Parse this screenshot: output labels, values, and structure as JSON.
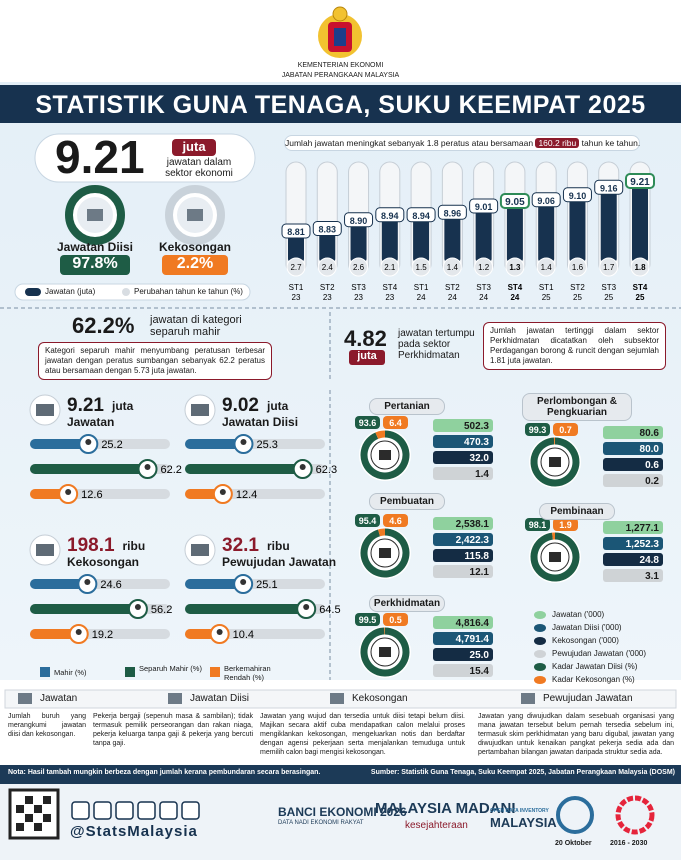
{
  "header": {
    "ministry": "KEMENTERIAN EKONOMI",
    "department": "JABATAN PERANGKAAN MALAYSIA",
    "title": "STATISTIK GUNA TENAGA, SUKU KEEMPAT 2025"
  },
  "summary": {
    "jobs": "9.21",
    "unit": "juta",
    "jobs_caption": "jawatan dalam sektor ekonomi",
    "filled_label": "Jawatan Diisi",
    "filled_rate": {
      "value": 97.8,
      "label": "97.8%"
    },
    "vacancy_label": "Kekosongan",
    "vacancy_rate": {
      "value": 2.2,
      "label": "2.2%"
    },
    "legend_jobs": "Jawatan (juta)",
    "legend_change": "Perubahan tahun ke tahun (%)"
  },
  "trend": {
    "note_before": "Jumlah jawatan meningkat sebanyak 1.8 peratus atau bersamaan",
    "note_highlight": "160.2 ribu",
    "note_after": "tahun ke tahun.",
    "quarters": [
      {
        "quarter": "ST1",
        "year": "23",
        "jobs": {
          "value": 8.81,
          "label": "8.81"
        },
        "change": 2.7
      },
      {
        "quarter": "ST2",
        "year": "23",
        "jobs": {
          "value": 8.83,
          "label": "8.83"
        },
        "change": 2.4
      },
      {
        "quarter": "ST3",
        "year": "23",
        "jobs": {
          "value": 8.9,
          "label": "8.90"
        },
        "change": 2.6
      },
      {
        "quarter": "ST4",
        "year": "23",
        "jobs": {
          "value": 8.94,
          "label": "8.94"
        },
        "change": 2.1
      },
      {
        "quarter": "ST1",
        "year": "24",
        "jobs": {
          "value": 8.94,
          "label": "8.94"
        },
        "change": 1.5
      },
      {
        "quarter": "ST2",
        "year": "24",
        "jobs": {
          "value": 8.96,
          "label": "8.96"
        },
        "change": 1.4
      },
      {
        "quarter": "ST3",
        "year": "24",
        "jobs": {
          "value": 9.01,
          "label": "9.01"
        },
        "change": 1.2
      },
      {
        "quarter": "ST4",
        "year": "24",
        "jobs": {
          "value": 9.05,
          "label": "9.05"
        },
        "change": 1.3
      },
      {
        "quarter": "ST1",
        "year": "25",
        "jobs": {
          "value": 9.06,
          "label": "9.06"
        },
        "change": 1.4
      },
      {
        "quarter": "ST2",
        "year": "25",
        "jobs": {
          "value": 9.1,
          "label": "9.10"
        },
        "change": 1.6
      },
      {
        "quarter": "ST3",
        "year": "25",
        "jobs": {
          "value": 9.16,
          "label": "9.16"
        },
        "change": 1.7
      },
      {
        "quarter": "ST4",
        "year": "25",
        "jobs": {
          "value": 9.21,
          "label": "9.21"
        },
        "change": 1.8
      }
    ]
  },
  "skill": {
    "share": "62.2%",
    "share_caption": "jawatan di kategori separuh mahir",
    "note": "Kategori separuh mahir menyumbang peratusan terbesar jawatan dengan peratus sumbangan sebanyak 62.2 peratus atau bersamaan dengan 5.73 juta jawatan.",
    "panels": [
      {
        "value": "9.21",
        "unit": "juta",
        "label": "Jawatan",
        "shares": [
          25.2,
          62.2,
          12.6
        ]
      },
      {
        "value": "9.02",
        "unit": "juta",
        "label": "Jawatan Diisi",
        "shares": [
          25.3,
          62.3,
          12.4
        ]
      },
      {
        "value": "198.1",
        "unit": "ribu",
        "label": "Kekosongan",
        "shares": [
          24.6,
          56.2,
          19.2
        ]
      },
      {
        "value": "32.1",
        "unit": "ribu",
        "label": "Pewujudan Jawatan",
        "shares": [
          25.1,
          64.5,
          10.4
        ]
      }
    ],
    "legend": [
      "Mahir (%)",
      "Separuh Mahir (%)",
      "Berkemahiran Rendah (%)"
    ]
  },
  "services": {
    "value": "4.82",
    "unit": "juta",
    "caption": "jawatan tertumpu pada sektor Perkhidmatan",
    "note": "Jumlah jawatan tertinggi dalam sektor Perkhidmatan dicatatkan oleh subsektor Perdagangan borong & runcit dengan sejumlah 1.81 juta jawatan."
  },
  "sectors": [
    {
      "name": "Pertanian",
      "filled_rate": 93.6,
      "vacancy_rate": 6.4,
      "stats": [
        "502.3",
        "470.3",
        "32.0",
        "1.4"
      ]
    },
    {
      "name": "Perlombongan & Pengkuarian",
      "filled_rate": 99.3,
      "vacancy_rate": 0.7,
      "stats": [
        "80.6",
        "80.0",
        "0.6",
        "0.2"
      ]
    },
    {
      "name": "Pembuatan",
      "filled_rate": 95.4,
      "vacancy_rate": 4.6,
      "stats": [
        "2,538.1",
        "2,422.3",
        "115.8",
        "12.1"
      ]
    },
    {
      "name": "Pembinaan",
      "filled_rate": 98.1,
      "vacancy_rate": 1.9,
      "stats": [
        "1,277.1",
        "1,252.3",
        "24.8",
        "3.1"
      ]
    },
    {
      "name": "Perkhidmatan",
      "filled_rate": 99.5,
      "vacancy_rate": 0.5,
      "stats": [
        "4,816.4",
        "4,791.4",
        "25.0",
        "15.4"
      ]
    }
  ],
  "sector_legend": [
    "Jawatan ('000)",
    "Jawatan Diisi ('000)",
    "Kekosongan ('000)",
    "Pewujudan Jawatan ('000)",
    "Kadar Jawatan Diisi (%)",
    "Kadar Kekosongan (%)"
  ],
  "definitions": [
    {
      "term": "Jawatan",
      "text": "Jumlah buruh yang merangkumi jawatan diisi dan kekosongan."
    },
    {
      "term": "Jawatan Diisi",
      "text": "Pekerja bergaji (sepenuh masa & sambilan); tidak termasuk pemilik perseorangan dan rakan niaga, pekerja keluarga tanpa gaji & pekerja yang bercuti tanpa gaji."
    },
    {
      "term": "Kekosongan",
      "text": "Jawatan yang wujud dan tersedia untuk diisi tetapi belum diisi. Majikan secara aktif cuba mendapatkan calon melalui proses mengiklankan kekosongan, mengeluarkan notis dan berdaftar dengan agensi pekerjaan serta menjalankan temuduga untuk memilih calon bagi mengisi kekosongan."
    },
    {
      "term": "Pewujudan Jawatan",
      "text": "Jawatan yang diwujudkan dalam sesebuah organisasi yang mana jawatan tersebut belum pernah tersedia sebelum ini, termasuk skim perkhidmatan yang baru digubal, jawatan yang diwujudkan untuk kenaikan pangkat pekerja sedia ada dan pertambahan bilangan jawatan daripada struktur sedia ada."
    }
  ],
  "footer": {
    "note": "Nota: Hasil tambah mungkin berbeza dengan jumlah kerana pembundaran secara berasingan.",
    "source": "Sumber: Statistik Guna Tenaga, Suku Keempat 2025, Jabatan Perangkaan Malaysia (DOSM)",
    "handle": "@StatsMalaysia",
    "logos": [
      "BANCI EKONOMI 2026",
      "DATA NADI EKONOMI RAKYAT",
      "MALAYSIA MADANI",
      "kesejahteraan",
      "OPEN DATA INVENTORY",
      "MALAYSIA",
      "20 Oktober",
      "2016 - 2030"
    ]
  }
}
